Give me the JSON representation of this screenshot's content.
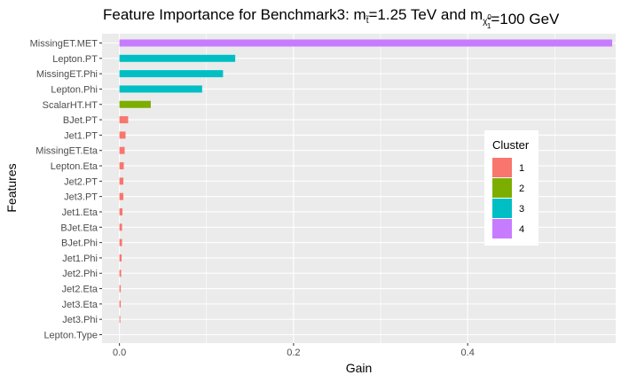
{
  "chart_data": {
    "type": "bar",
    "orientation": "horizontal",
    "title": {
      "prefix": "Feature Importance for Benchmark3: m",
      "sub1": "t̃",
      "mid": "=1.25 TeV and m",
      "sub2": "χ̃",
      "sub2_sup": "0",
      "sub2_sub": "1",
      "suffix": "=100 GeV"
    },
    "xlabel": "Gain",
    "ylabel": "Features",
    "xlim": [
      -0.02,
      0.57
    ],
    "xticks": [
      0.0,
      0.2,
      0.4
    ],
    "xtick_labels": [
      "0.0",
      "0.2",
      "0.4"
    ],
    "grid": true,
    "background": "#ebebeb",
    "legend": {
      "title": "Cluster",
      "position": "right",
      "entries": [
        {
          "label": "1",
          "color": "#f8766d"
        },
        {
          "label": "2",
          "color": "#7cae00"
        },
        {
          "label": "3",
          "color": "#00bfc4"
        },
        {
          "label": "4",
          "color": "#c77cff"
        }
      ]
    },
    "categories": [
      "MissingET.MET",
      "Lepton.PT",
      "MissingET.Phi",
      "Lepton.Phi",
      "ScalarHT.HT",
      "BJet.PT",
      "Jet1.PT",
      "MissingET.Eta",
      "Lepton.Eta",
      "Jet2.PT",
      "Jet3.PT",
      "Jet1.Eta",
      "BJet.Eta",
      "BJet.Phi",
      "Jet1.Phi",
      "Jet2.Phi",
      "Jet2.Eta",
      "Jet3.Eta",
      "Jet3.Phi",
      "Lepton.Type"
    ],
    "values": [
      0.566,
      0.133,
      0.119,
      0.095,
      0.036,
      0.01,
      0.007,
      0.006,
      0.005,
      0.0045,
      0.0045,
      0.0035,
      0.003,
      0.003,
      0.0025,
      0.002,
      0.0015,
      0.0015,
      0.001,
      0.0
    ],
    "clusters": [
      4,
      3,
      3,
      3,
      2,
      1,
      1,
      1,
      1,
      1,
      1,
      1,
      1,
      1,
      1,
      1,
      1,
      1,
      1,
      1
    ]
  }
}
